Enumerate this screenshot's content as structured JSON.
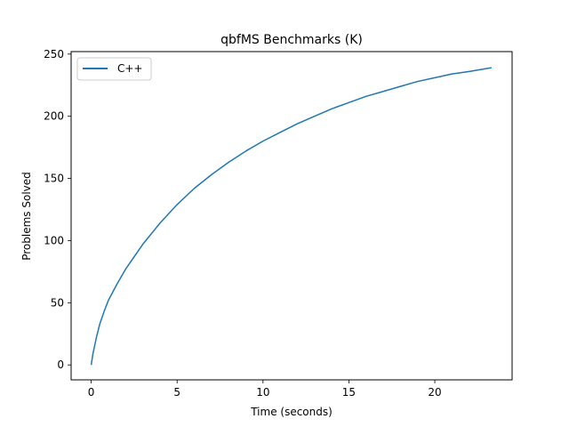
{
  "chart_data": {
    "type": "line",
    "title": "qbfMS Benchmarks (K)",
    "xlabel": "Time (seconds)",
    "ylabel": "Problems Solved",
    "xlim": [
      -1.17,
      24.5
    ],
    "ylim": [
      -12,
      252
    ],
    "xticks": [
      0,
      5,
      10,
      15,
      20
    ],
    "yticks": [
      0,
      50,
      100,
      150,
      200,
      250
    ],
    "grid": false,
    "legend_position": "top-left",
    "series": [
      {
        "name": "C++",
        "color": "#1f77b4",
        "x": [
          0,
          0.1,
          0.3,
          0.5,
          0.75,
          1,
          1.5,
          2,
          3,
          4,
          5,
          6,
          7,
          8,
          9,
          10,
          11,
          12,
          13,
          14,
          15,
          16,
          17,
          18,
          19,
          20,
          21,
          22,
          23.3
        ],
        "y": [
          0,
          9,
          22,
          33,
          43,
          52,
          65,
          77,
          97,
          114,
          129,
          142,
          153,
          163,
          172,
          180,
          187,
          194,
          200,
          206,
          211,
          216,
          220,
          224,
          228,
          231,
          234,
          236,
          239
        ]
      }
    ]
  }
}
